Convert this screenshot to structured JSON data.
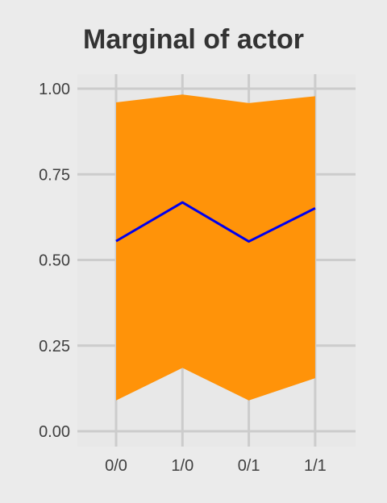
{
  "chart_data": {
    "type": "area",
    "title": "Marginal of actor",
    "xlabel": "",
    "ylabel": "",
    "categories": [
      "0/0",
      "1/0",
      "0/1",
      "1/1"
    ],
    "ylim": [
      0,
      1
    ],
    "yticks": [
      "0.00",
      "0.25",
      "0.50",
      "0.75",
      "1.00"
    ],
    "ytick_values": [
      0,
      0.25,
      0.5,
      0.75,
      1.0
    ],
    "grid": true,
    "legend": "none",
    "series": [
      {
        "kind": "band",
        "lower": [
          0.09,
          0.185,
          0.09,
          0.155
        ],
        "upper": [
          0.96,
          0.983,
          0.958,
          0.978
        ],
        "color": "#ff9309"
      },
      {
        "kind": "line",
        "values": [
          0.555,
          0.668,
          0.554,
          0.651
        ],
        "color": "#0000ee"
      }
    ]
  },
  "colors": {
    "background": "#ebebeb",
    "panel": "#e8e8e8",
    "grid": "#cccccc",
    "text": "#333333"
  }
}
